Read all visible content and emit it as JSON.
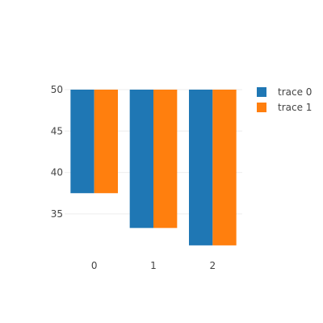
{
  "chart_data": {
    "type": "bar",
    "barmode": "group",
    "categories": [
      "0",
      "1",
      "2"
    ],
    "series": [
      {
        "name": "trace 0",
        "color": "#1f77b4",
        "values": [
          37.5,
          33.3,
          31.2
        ]
      },
      {
        "name": "trace 1",
        "color": "#ff7f0e",
        "values": [
          37.5,
          33.3,
          31.2
        ]
      }
    ],
    "base": 50,
    "ylim": [
      30.7,
      50
    ],
    "yticks": [
      "35",
      "40",
      "45",
      "50"
    ],
    "ytick_values": [
      35,
      40,
      45,
      50
    ],
    "grid": true,
    "legend_position": "top-right",
    "title": "",
    "xlabel": "",
    "ylabel": ""
  }
}
